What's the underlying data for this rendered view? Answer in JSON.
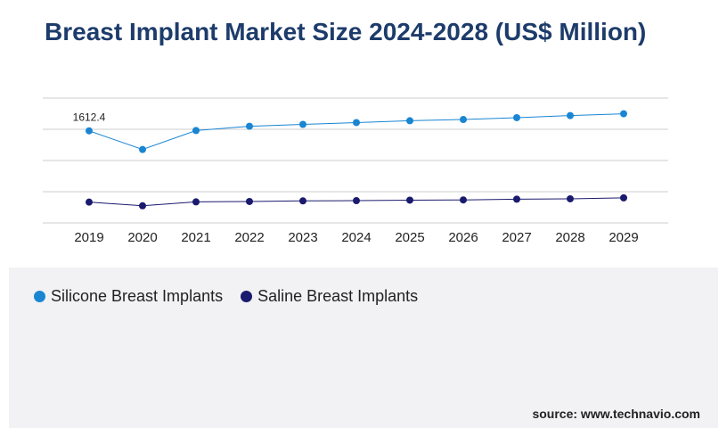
{
  "title": "Breast Implant Market Size 2024-2028 (US$ Million)",
  "source": "source: www.technavio.com",
  "colors": {
    "silicone": "#1a85d2",
    "saline": "#1a1a6e",
    "title": "#1d3c6b",
    "grid": "#cccccc"
  },
  "chart_data": {
    "type": "line",
    "x": [
      "2019",
      "2020",
      "2021",
      "2022",
      "2023",
      "2024",
      "2025",
      "2026",
      "2027",
      "2028",
      "2029"
    ],
    "series": [
      {
        "name": "Silicone Breast Implants",
        "values": [
          1612.4,
          1460,
          1615,
          1650,
          1665,
          1680,
          1695,
          1705,
          1720,
          1737,
          1752
        ]
      },
      {
        "name": "Saline Breast Implants",
        "values": [
          1030,
          1000,
          1032,
          1035,
          1040,
          1042,
          1046,
          1048,
          1054,
          1057,
          1065
        ]
      }
    ],
    "annotations": [
      {
        "series": 0,
        "index": 0,
        "text": "1612.4"
      }
    ],
    "ylim": [
      860,
      1880
    ],
    "grid": true,
    "legend": "bottom-left"
  }
}
